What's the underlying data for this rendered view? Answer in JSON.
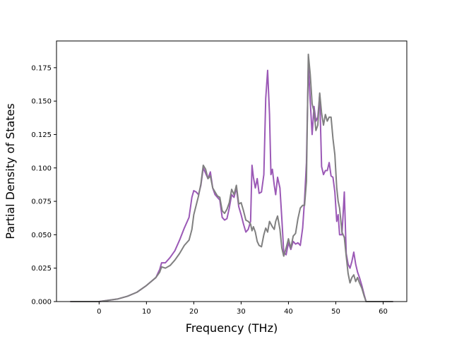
{
  "chart_data": {
    "type": "line",
    "title": "",
    "xlabel": "Frequency (THz)",
    "ylabel": "Partial Density of States",
    "xlim": [
      -9,
      65
    ],
    "ylim": [
      0,
      0.195
    ],
    "x_ticks": [
      {
        "value": 0,
        "label": "0"
      },
      {
        "value": 10,
        "label": "10"
      },
      {
        "value": 20,
        "label": "20"
      },
      {
        "value": 30,
        "label": "30"
      },
      {
        "value": 40,
        "label": "40"
      },
      {
        "value": 50,
        "label": "50"
      },
      {
        "value": 60,
        "label": "60"
      }
    ],
    "y_ticks": [
      {
        "value": 0.0,
        "label": "0.000"
      },
      {
        "value": 0.025,
        "label": "0.025"
      },
      {
        "value": 0.05,
        "label": "0.050"
      },
      {
        "value": 0.075,
        "label": "0.075"
      },
      {
        "value": 0.1,
        "label": "0.100"
      },
      {
        "value": 0.125,
        "label": "0.125"
      },
      {
        "value": 0.15,
        "label": "0.150"
      },
      {
        "value": 0.175,
        "label": "0.175"
      }
    ],
    "grid": false,
    "legend": "none",
    "series": [
      {
        "color": "#9b59b6",
        "points": [
          [
            -6,
            0
          ],
          [
            0,
            0
          ],
          [
            2,
            0.001
          ],
          [
            4,
            0.002
          ],
          [
            6,
            0.004
          ],
          [
            8,
            0.007
          ],
          [
            10,
            0.012
          ],
          [
            12,
            0.018
          ],
          [
            12.8,
            0.024
          ],
          [
            13.2,
            0.029
          ],
          [
            14,
            0.029
          ],
          [
            15,
            0.033
          ],
          [
            16,
            0.038
          ],
          [
            17,
            0.046
          ],
          [
            18,
            0.055
          ],
          [
            19,
            0.063
          ],
          [
            19.6,
            0.078
          ],
          [
            20,
            0.083
          ],
          [
            20.5,
            0.082
          ],
          [
            21,
            0.08
          ],
          [
            21.5,
            0.087
          ],
          [
            22,
            0.1
          ],
          [
            22.5,
            0.096
          ],
          [
            23,
            0.092
          ],
          [
            23.5,
            0.097
          ],
          [
            24,
            0.085
          ],
          [
            24.5,
            0.08
          ],
          [
            25,
            0.078
          ],
          [
            25.5,
            0.076
          ],
          [
            26,
            0.063
          ],
          [
            26.5,
            0.061
          ],
          [
            27,
            0.062
          ],
          [
            27.5,
            0.07
          ],
          [
            28,
            0.08
          ],
          [
            28.5,
            0.078
          ],
          [
            29,
            0.085
          ],
          [
            29.5,
            0.071
          ],
          [
            30,
            0.065
          ],
          [
            30.5,
            0.058
          ],
          [
            31,
            0.052
          ],
          [
            31.5,
            0.054
          ],
          [
            32,
            0.06
          ],
          [
            32.3,
            0.102
          ],
          [
            32.6,
            0.093
          ],
          [
            33,
            0.085
          ],
          [
            33.4,
            0.092
          ],
          [
            33.8,
            0.081
          ],
          [
            34.3,
            0.082
          ],
          [
            34.8,
            0.095
          ],
          [
            35.2,
            0.152
          ],
          [
            35.6,
            0.173
          ],
          [
            36,
            0.14
          ],
          [
            36.3,
            0.095
          ],
          [
            36.6,
            0.099
          ],
          [
            37,
            0.087
          ],
          [
            37.3,
            0.08
          ],
          [
            37.7,
            0.093
          ],
          [
            38.2,
            0.085
          ],
          [
            38.6,
            0.062
          ],
          [
            39,
            0.037
          ],
          [
            39.5,
            0.035
          ],
          [
            40,
            0.044
          ],
          [
            40.5,
            0.039
          ],
          [
            41,
            0.045
          ],
          [
            41.5,
            0.043
          ],
          [
            42,
            0.044
          ],
          [
            42.5,
            0.042
          ],
          [
            43,
            0.055
          ],
          [
            43.4,
            0.076
          ],
          [
            43.8,
            0.104
          ],
          [
            44.2,
            0.177
          ],
          [
            44.6,
            0.15
          ],
          [
            45,
            0.125
          ],
          [
            45.4,
            0.146
          ],
          [
            45.8,
            0.135
          ],
          [
            46.2,
            0.138
          ],
          [
            46.6,
            0.155
          ],
          [
            47,
            0.101
          ],
          [
            47.4,
            0.095
          ],
          [
            47.8,
            0.098
          ],
          [
            48.2,
            0.098
          ],
          [
            48.6,
            0.104
          ],
          [
            49,
            0.094
          ],
          [
            49.4,
            0.093
          ],
          [
            49.8,
            0.082
          ],
          [
            50.2,
            0.06
          ],
          [
            50.5,
            0.065
          ],
          [
            50.8,
            0.05
          ],
          [
            51.3,
            0.05
          ],
          [
            51.8,
            0.082
          ],
          [
            52.2,
            0.036
          ],
          [
            52.6,
            0.028
          ],
          [
            53,
            0.025
          ],
          [
            53.4,
            0.03
          ],
          [
            53.8,
            0.037
          ],
          [
            54.2,
            0.028
          ],
          [
            54.6,
            0.022
          ],
          [
            55,
            0.018
          ],
          [
            55.5,
            0.012
          ],
          [
            56,
            0.005
          ],
          [
            56.4,
            0
          ],
          [
            62,
            0
          ]
        ]
      },
      {
        "color": "#808080",
        "points": [
          [
            -6,
            0
          ],
          [
            0,
            0
          ],
          [
            2,
            0.001
          ],
          [
            4,
            0.002
          ],
          [
            6,
            0.004
          ],
          [
            8,
            0.007
          ],
          [
            10,
            0.012
          ],
          [
            12,
            0.018
          ],
          [
            12.8,
            0.022
          ],
          [
            13.2,
            0.026
          ],
          [
            14,
            0.025
          ],
          [
            15,
            0.027
          ],
          [
            16,
            0.031
          ],
          [
            17,
            0.036
          ],
          [
            18,
            0.042
          ],
          [
            19,
            0.046
          ],
          [
            19.6,
            0.054
          ],
          [
            20,
            0.065
          ],
          [
            20.5,
            0.072
          ],
          [
            21,
            0.079
          ],
          [
            21.5,
            0.088
          ],
          [
            22,
            0.102
          ],
          [
            22.5,
            0.099
          ],
          [
            23,
            0.092
          ],
          [
            23.5,
            0.094
          ],
          [
            24,
            0.085
          ],
          [
            24.5,
            0.082
          ],
          [
            25,
            0.079
          ],
          [
            25.5,
            0.078
          ],
          [
            26,
            0.068
          ],
          [
            26.5,
            0.066
          ],
          [
            27,
            0.069
          ],
          [
            27.5,
            0.074
          ],
          [
            28,
            0.084
          ],
          [
            28.5,
            0.08
          ],
          [
            29,
            0.087
          ],
          [
            29.5,
            0.073
          ],
          [
            30,
            0.074
          ],
          [
            30.5,
            0.068
          ],
          [
            31,
            0.061
          ],
          [
            31.5,
            0.06
          ],
          [
            32,
            0.058
          ],
          [
            32.3,
            0.053
          ],
          [
            32.6,
            0.056
          ],
          [
            33,
            0.052
          ],
          [
            33.4,
            0.045
          ],
          [
            33.8,
            0.042
          ],
          [
            34.3,
            0.041
          ],
          [
            34.8,
            0.05
          ],
          [
            35.2,
            0.055
          ],
          [
            35.6,
            0.052
          ],
          [
            36,
            0.06
          ],
          [
            36.3,
            0.058
          ],
          [
            36.6,
            0.056
          ],
          [
            37,
            0.054
          ],
          [
            37.3,
            0.06
          ],
          [
            37.7,
            0.064
          ],
          [
            38.2,
            0.054
          ],
          [
            38.6,
            0.04
          ],
          [
            39,
            0.034
          ],
          [
            39.5,
            0.04
          ],
          [
            40,
            0.047
          ],
          [
            40.5,
            0.04
          ],
          [
            41,
            0.049
          ],
          [
            41.5,
            0.051
          ],
          [
            42,
            0.062
          ],
          [
            42.5,
            0.07
          ],
          [
            43,
            0.072
          ],
          [
            43.4,
            0.072
          ],
          [
            43.8,
            0.09
          ],
          [
            44.2,
            0.185
          ],
          [
            44.6,
            0.17
          ],
          [
            45,
            0.148
          ],
          [
            45.4,
            0.142
          ],
          [
            45.8,
            0.128
          ],
          [
            46.2,
            0.132
          ],
          [
            46.6,
            0.156
          ],
          [
            47,
            0.141
          ],
          [
            47.4,
            0.132
          ],
          [
            47.8,
            0.14
          ],
          [
            48.2,
            0.135
          ],
          [
            48.6,
            0.138
          ],
          [
            49,
            0.138
          ],
          [
            49.4,
            0.122
          ],
          [
            49.8,
            0.11
          ],
          [
            50.2,
            0.085
          ],
          [
            50.5,
            0.075
          ],
          [
            50.8,
            0.07
          ],
          [
            51.3,
            0.052
          ],
          [
            51.8,
            0.048
          ],
          [
            52.2,
            0.034
          ],
          [
            52.6,
            0.021
          ],
          [
            53,
            0.014
          ],
          [
            53.4,
            0.018
          ],
          [
            53.8,
            0.02
          ],
          [
            54.2,
            0.015
          ],
          [
            54.6,
            0.018
          ],
          [
            55,
            0.014
          ],
          [
            55.5,
            0.01
          ],
          [
            56,
            0.004
          ],
          [
            56.4,
            0
          ],
          [
            62,
            0
          ]
        ]
      }
    ]
  }
}
